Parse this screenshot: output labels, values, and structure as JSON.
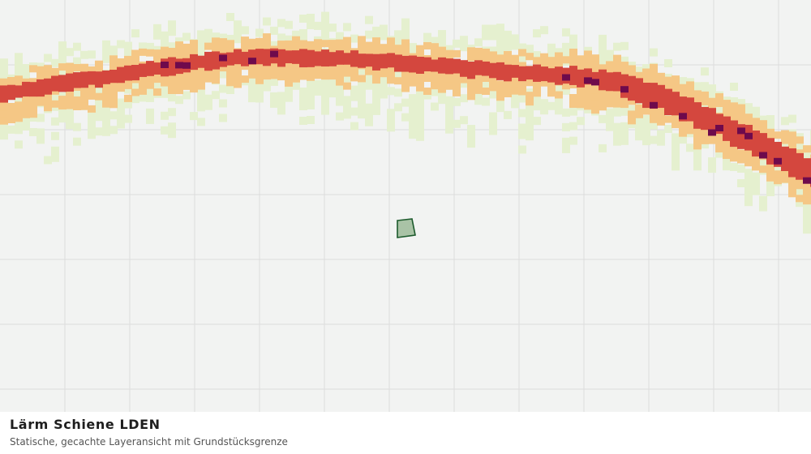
{
  "map": {
    "background_color": "#f2f3f2",
    "grid_color": "#dcdddc",
    "noise_classes": [
      {
        "level": "low",
        "color": "#e5f0cf"
      },
      {
        "level": "medium",
        "color": "#f5c785"
      },
      {
        "level": "high",
        "color": "#d4473e"
      },
      {
        "level": "very-high",
        "color": "#6e0a4c"
      }
    ],
    "parcel": {
      "fill": "#a9c3a6",
      "stroke": "#1c5a2c"
    }
  },
  "caption": {
    "title": "Lärm Schiene LDEN",
    "subtitle": "Statische, gecachte Layeransicht mit Grundstücksgrenze"
  }
}
